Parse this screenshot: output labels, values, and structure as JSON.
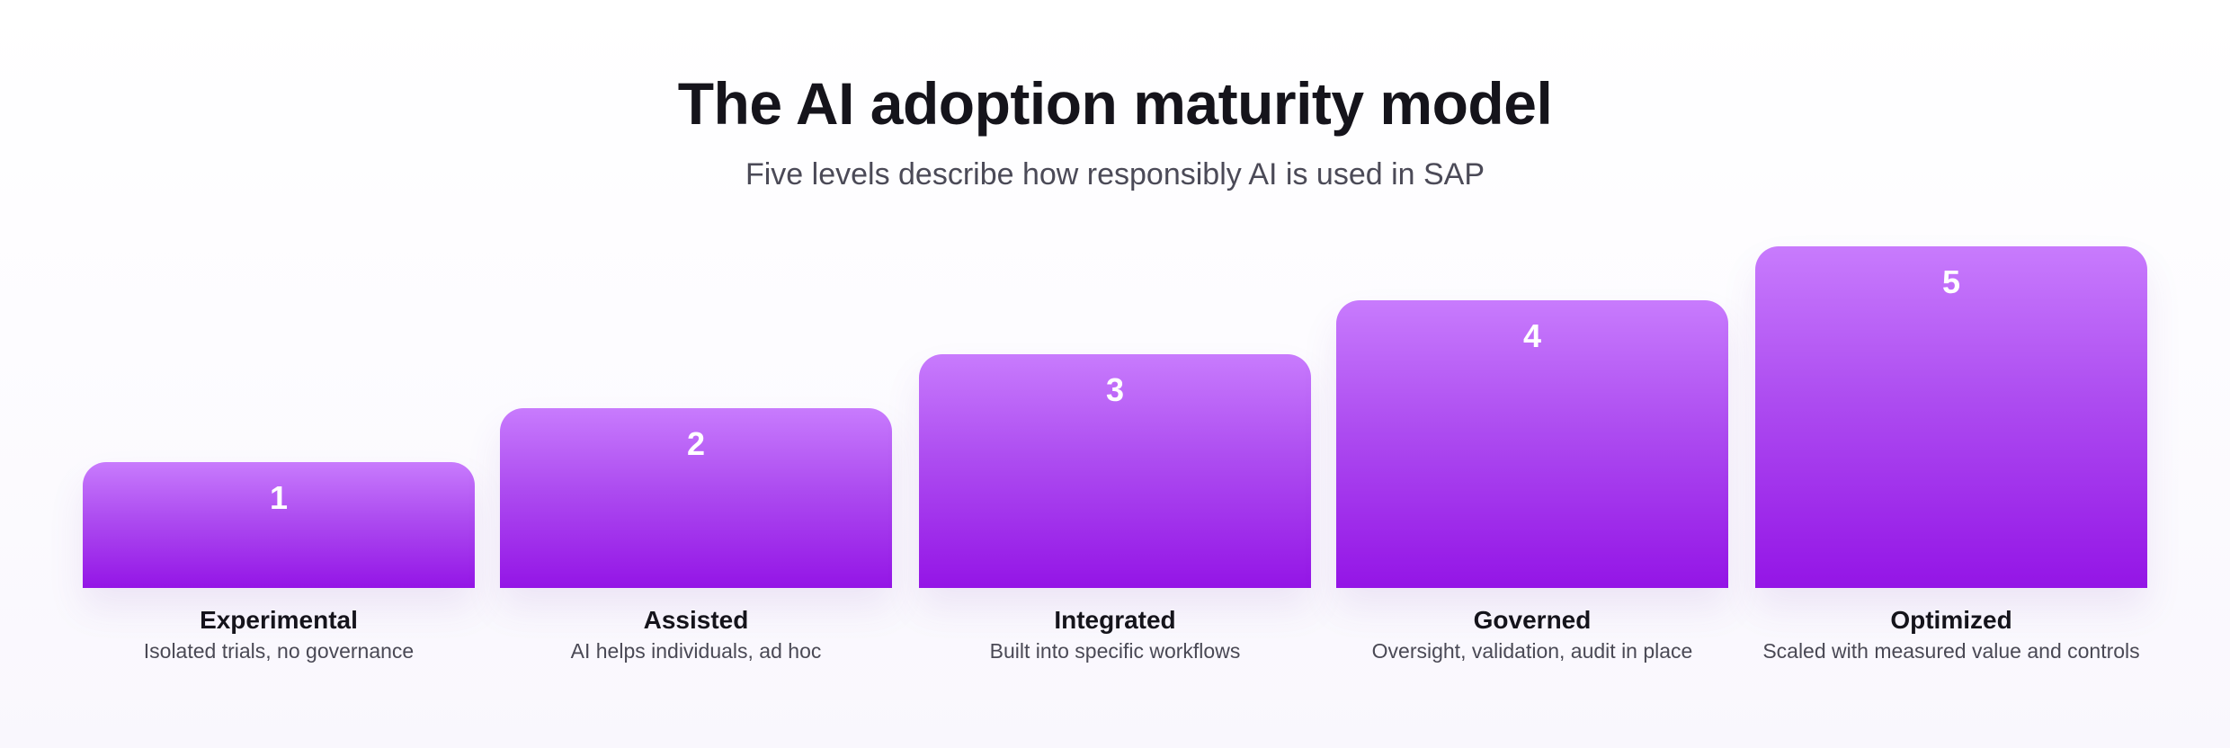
{
  "title": "The AI adoption maturity model",
  "subtitle": "Five levels describe how responsibly AI is used in SAP",
  "colors": {
    "bar_top": "#c87bfd",
    "bar_bottom": "#9415e6",
    "title": "#15141b",
    "subtitle": "#4b4a57"
  },
  "levels": [
    {
      "number": "1",
      "label": "Experimental",
      "description": "Isolated trials, no governance"
    },
    {
      "number": "2",
      "label": "Assisted",
      "description": "AI helps individuals, ad hoc"
    },
    {
      "number": "3",
      "label": "Integrated",
      "description": "Built into specific workflows"
    },
    {
      "number": "4",
      "label": "Governed",
      "description": "Oversight, validation, audit in place"
    },
    {
      "number": "5",
      "label": "Optimized",
      "description": "Scaled with measured value and controls"
    }
  ]
}
